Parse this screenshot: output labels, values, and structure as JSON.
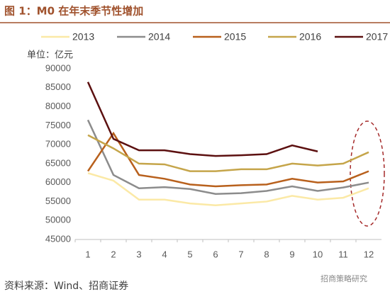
{
  "chart_data": {
    "type": "line",
    "title": "图 1：M0 在年末季节性增加",
    "y_axis_label": "单位：亿元",
    "source": "资料来源：Wind、招商证券",
    "watermark": "招商策略研究",
    "categories": [
      "1",
      "2",
      "3",
      "4",
      "5",
      "6",
      "7",
      "8",
      "9",
      "10",
      "11",
      "12"
    ],
    "series": [
      {
        "name": "2013",
        "color": "#fbe9a6",
        "values": [
          62500,
          60500,
          55500,
          55500,
          54500,
          54000,
          54500,
          55000,
          56500,
          55500,
          56000,
          58500
        ]
      },
      {
        "name": "2014",
        "color": "#8c8c8c",
        "values": [
          76500,
          62000,
          58500,
          58800,
          58300,
          57000,
          57200,
          57800,
          59000,
          57800,
          58700,
          60000
        ]
      },
      {
        "name": "2015",
        "color": "#b8601c",
        "values": [
          63000,
          73000,
          62000,
          61000,
          59500,
          59000,
          59300,
          59500,
          61000,
          60000,
          60300,
          63000
        ]
      },
      {
        "name": "2016",
        "color": "#c5a54a",
        "values": [
          72500,
          69000,
          65000,
          64800,
          63000,
          63000,
          63500,
          63500,
          65000,
          64500,
          65000,
          68000
        ]
      },
      {
        "name": "2017",
        "color": "#5c1010",
        "values": [
          86500,
          71500,
          68500,
          68500,
          67500,
          67000,
          67200,
          67500,
          69800,
          68200,
          null,
          null
        ]
      }
    ],
    "ylim": [
      45000,
      90000
    ],
    "yticks": [
      45000,
      50000,
      55000,
      60000,
      65000,
      70000,
      75000,
      80000,
      85000,
      90000
    ],
    "grid": false
  }
}
